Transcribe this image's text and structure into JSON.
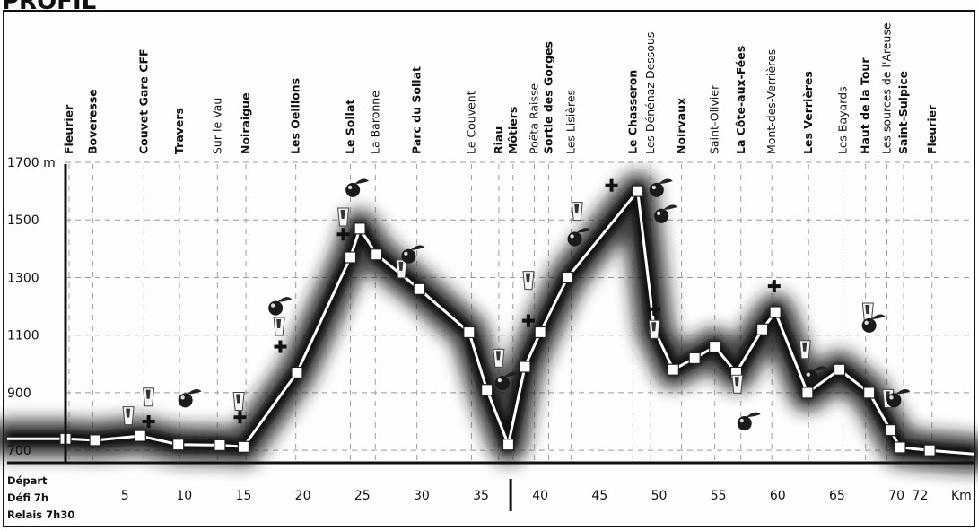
{
  "header": {
    "title": "PROFIL"
  },
  "chart_data": {
    "type": "area",
    "xlim": [
      0,
      74
    ],
    "ylim": [
      660,
      1700
    ],
    "yticks": [
      {
        "value": 1700,
        "label": "1700 m"
      },
      {
        "value": 1500,
        "label": "1500"
      },
      {
        "value": 1300,
        "label": "1300"
      },
      {
        "value": 1100,
        "label": "1100"
      },
      {
        "value": 900,
        "label": "900"
      },
      {
        "value": 700,
        "label": "700"
      }
    ],
    "xticks": [
      {
        "value": 5,
        "label": "5"
      },
      {
        "value": 10,
        "label": "10"
      },
      {
        "value": 15,
        "label": "15"
      },
      {
        "value": 20,
        "label": "20"
      },
      {
        "value": 25,
        "label": "25"
      },
      {
        "value": 30,
        "label": "30"
      },
      {
        "value": 35,
        "label": "35"
      },
      {
        "value": 40,
        "label": "40"
      },
      {
        "value": 45,
        "label": "45"
      },
      {
        "value": 50,
        "label": "50"
      },
      {
        "value": 55,
        "label": "55"
      },
      {
        "value": 60,
        "label": "60"
      },
      {
        "value": 65,
        "label": "65"
      },
      {
        "value": 70,
        "label": "70"
      },
      {
        "value": 72,
        "label": "72"
      }
    ],
    "xunit": "Km",
    "start_labels": [
      "Départ",
      "Défi 7h",
      "Relais 7h30"
    ],
    "profile": [
      {
        "km": 0,
        "alt": 740
      },
      {
        "km": 2.5,
        "alt": 735
      },
      {
        "km": 6.3,
        "alt": 750
      },
      {
        "km": 9.5,
        "alt": 720
      },
      {
        "km": 13,
        "alt": 718
      },
      {
        "km": 15,
        "alt": 712
      },
      {
        "km": 19.5,
        "alt": 970
      },
      {
        "km": 24,
        "alt": 1370
      },
      {
        "km": 24.8,
        "alt": 1470
      },
      {
        "km": 26.2,
        "alt": 1380
      },
      {
        "km": 29.8,
        "alt": 1260
      },
      {
        "km": 34,
        "alt": 1110
      },
      {
        "km": 35.5,
        "alt": 910
      },
      {
        "km": 37.3,
        "alt": 720
      },
      {
        "km": 38.7,
        "alt": 990
      },
      {
        "km": 40,
        "alt": 1110
      },
      {
        "km": 42.3,
        "alt": 1300
      },
      {
        "km": 48.2,
        "alt": 1600
      },
      {
        "km": 49.6,
        "alt": 1120
      },
      {
        "km": 51.2,
        "alt": 980
      },
      {
        "km": 53,
        "alt": 1020
      },
      {
        "km": 54.7,
        "alt": 1060
      },
      {
        "km": 56.5,
        "alt": 970
      },
      {
        "km": 58.7,
        "alt": 1120
      },
      {
        "km": 59.8,
        "alt": 1180
      },
      {
        "km": 62.5,
        "alt": 900
      },
      {
        "km": 65.2,
        "alt": 980
      },
      {
        "km": 67.7,
        "alt": 900
      },
      {
        "km": 69.5,
        "alt": 770
      },
      {
        "km": 70.3,
        "alt": 710
      },
      {
        "km": 72.8,
        "alt": 700
      }
    ],
    "locations": [
      {
        "name": "Fleurier",
        "km": 0.3,
        "bold": true
      },
      {
        "name": "Boveresse",
        "km": 2.3,
        "bold": true
      },
      {
        "name": "Couvet Gare CFF",
        "km": 6.6,
        "bold": true
      },
      {
        "name": "Travers",
        "km": 9.6,
        "bold": true
      },
      {
        "name": "Sur le Vau",
        "km": 12.8,
        "bold": false
      },
      {
        "name": "Noiraigue",
        "km": 15.2,
        "bold": true
      },
      {
        "name": "Les Oeillons",
        "km": 19.4,
        "bold": true
      },
      {
        "name": "Le Sollat",
        "km": 24.0,
        "bold": true
      },
      {
        "name": "La Baronne",
        "km": 26.1,
        "bold": false
      },
      {
        "name": "Parc du Sollat",
        "km": 29.6,
        "bold": true
      },
      {
        "name": "Le Couvent",
        "km": 34.2,
        "bold": false
      },
      {
        "name": "Riau",
        "km": 36.5,
        "bold": true
      },
      {
        "name": "Môtiers",
        "km": 37.7,
        "bold": true
      },
      {
        "name": "Poëta Raisse",
        "km": 39.5,
        "bold": false
      },
      {
        "name": "Sortie des Gorges",
        "km": 40.7,
        "bold": true
      },
      {
        "name": "Les Lisières",
        "km": 42.6,
        "bold": false
      },
      {
        "name": "Le Chasseron",
        "km": 47.8,
        "bold": true
      },
      {
        "name": "Les Dénénaz Dessous",
        "km": 49.3,
        "bold": false
      },
      {
        "name": "Noirvaux",
        "km": 51.9,
        "bold": true
      },
      {
        "name": "Saint-Olivier",
        "km": 54.7,
        "bold": false
      },
      {
        "name": "La Côte-aux-Fées",
        "km": 56.9,
        "bold": true
      },
      {
        "name": "Mont-des-Verrières",
        "km": 59.5,
        "bold": false
      },
      {
        "name": "Les Verrières",
        "km": 62.6,
        "bold": true
      },
      {
        "name": "Les Bayards",
        "km": 65.5,
        "bold": false
      },
      {
        "name": "Haut de la Tour",
        "km": 67.4,
        "bold": true
      },
      {
        "name": "Les sources de l'Areuse",
        "km": 69.2,
        "bold": false
      },
      {
        "name": "Saint-Sulpice",
        "km": 70.6,
        "bold": true
      },
      {
        "name": "Fleurier",
        "km": 73.0,
        "bold": true
      }
    ],
    "first_aid": [
      {
        "km": 7.0,
        "alt": 800
      },
      {
        "km": 14.7,
        "alt": 815
      },
      {
        "km": 18.1,
        "alt": 1060
      },
      {
        "km": 23.4,
        "alt": 1450
      },
      {
        "km": 39.0,
        "alt": 1150
      },
      {
        "km": 46.0,
        "alt": 1620
      },
      {
        "km": 49.6,
        "alt": 1190
      },
      {
        "km": 59.7,
        "alt": 1270
      }
    ],
    "refreshment_points": [
      {
        "km": 5.3,
        "alt": 820
      },
      {
        "km": 7.0,
        "alt": 885
      },
      {
        "km": 14.6,
        "alt": 870
      },
      {
        "km": 18.0,
        "alt": 1130
      },
      {
        "km": 23.4,
        "alt": 1510
      },
      {
        "km": 28.3,
        "alt": 1330
      },
      {
        "km": 36.5,
        "alt": 1020
      },
      {
        "km": 39.0,
        "alt": 1290
      },
      {
        "km": 43.1,
        "alt": 1530
      },
      {
        "km": 49.6,
        "alt": 1120
      },
      {
        "km": 56.6,
        "alt": 930
      },
      {
        "km": 62.3,
        "alt": 1050
      },
      {
        "km": 67.6,
        "alt": 1180
      },
      {
        "km": 69.3,
        "alt": 880
      }
    ],
    "food_points": [
      {
        "km": 10.1,
        "alt": 880
      },
      {
        "km": 17.7,
        "alt": 1200
      },
      {
        "km": 24.2,
        "alt": 1610
      },
      {
        "km": 28.9,
        "alt": 1380
      },
      {
        "km": 36.8,
        "alt": 940
      },
      {
        "km": 42.9,
        "alt": 1440
      },
      {
        "km": 49.8,
        "alt": 1610
      },
      {
        "km": 50.2,
        "alt": 1520
      },
      {
        "km": 57.2,
        "alt": 800
      },
      {
        "km": 62.8,
        "alt": 960
      },
      {
        "km": 67.7,
        "alt": 1140
      },
      {
        "km": 69.8,
        "alt": 880
      }
    ]
  }
}
